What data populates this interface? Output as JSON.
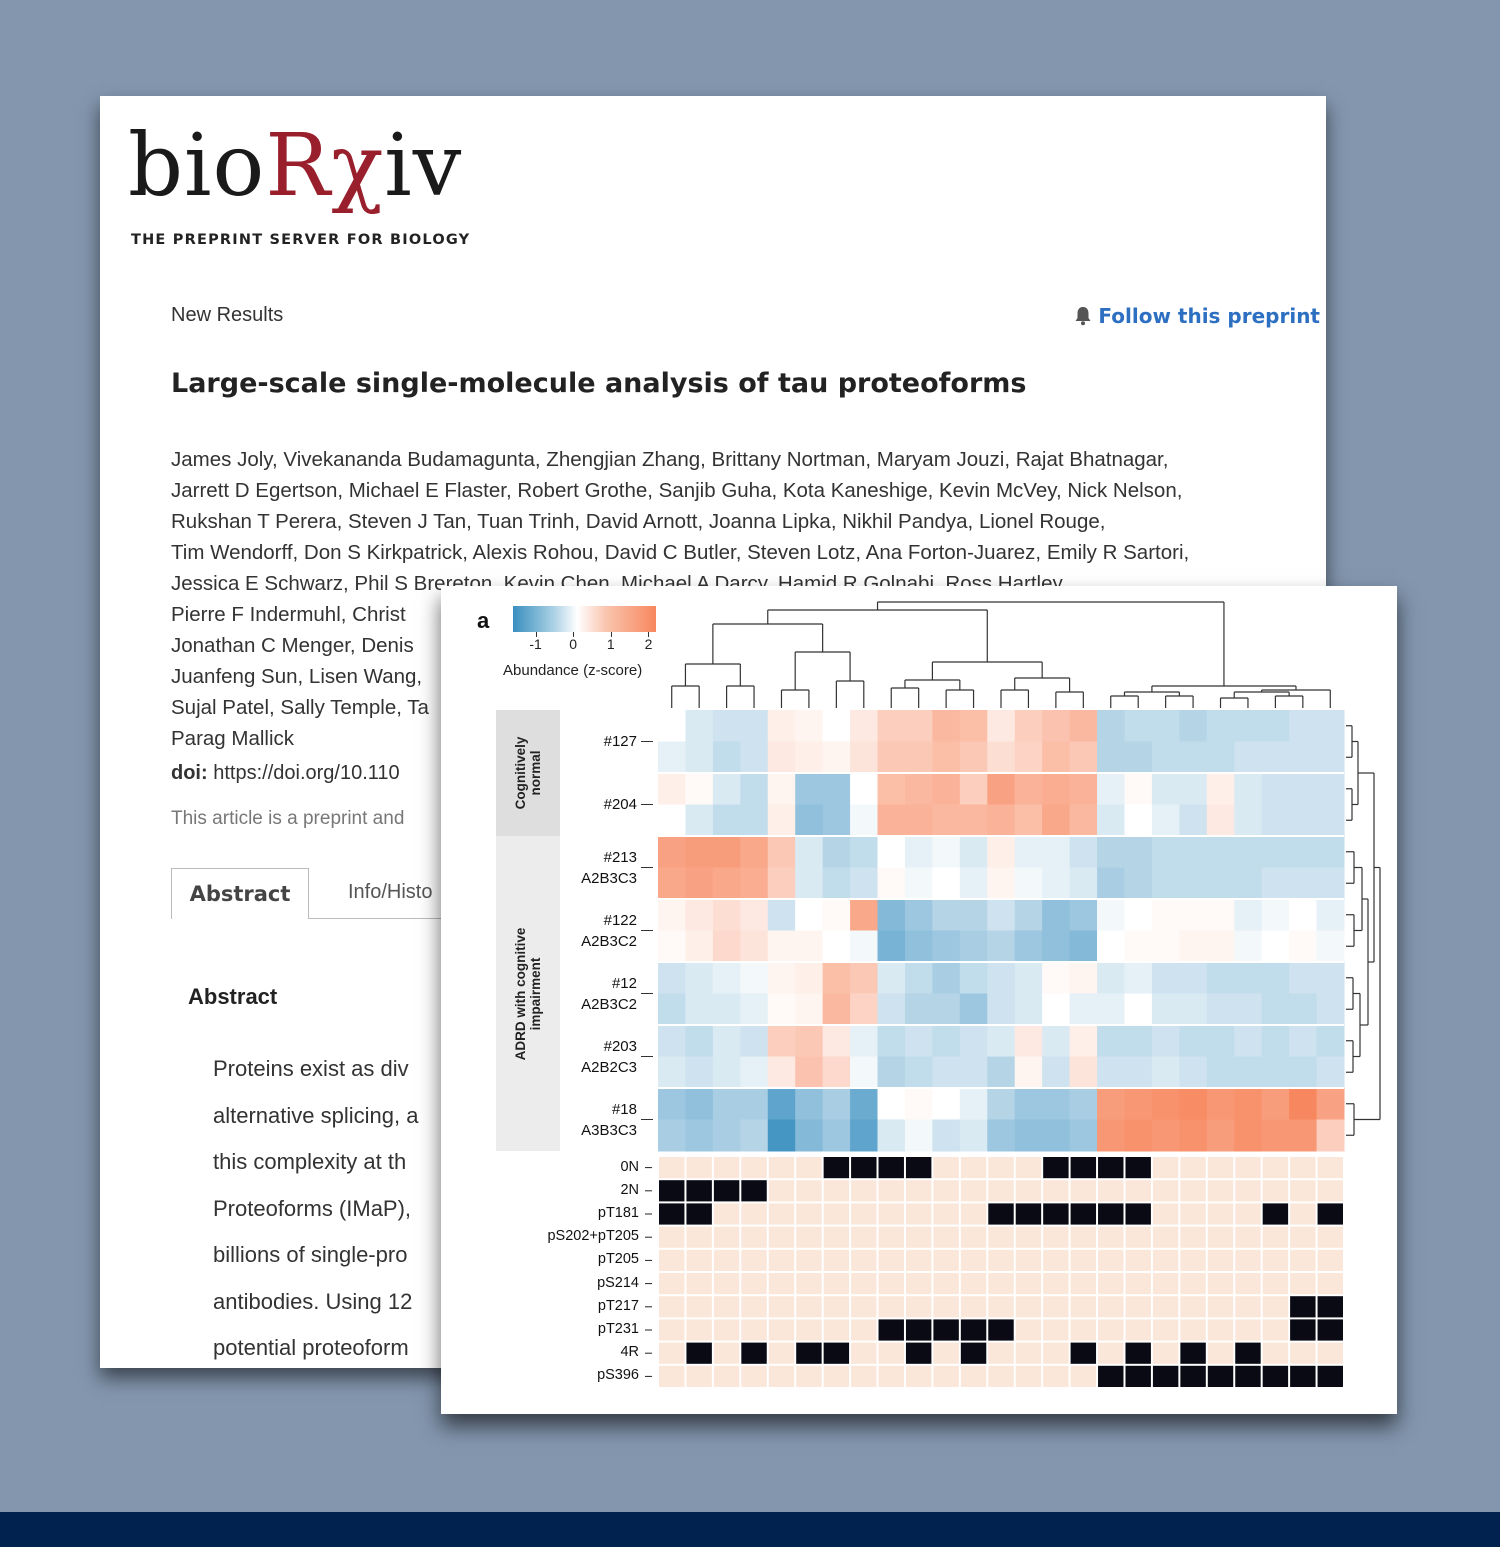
{
  "biorxiv": {
    "logo_pre": "bio",
    "logo_rx": "Rχ",
    "logo_post": "iv",
    "tagline": "THE PREPRINT SERVER FOR BIOLOGY",
    "section": "New Results",
    "follow_label": "Follow this preprint",
    "title": "Large-scale single-molecule analysis of tau proteoforms",
    "authors_lines": [
      "James Joly, Vivekananda Budamagunta, Zhengjian Zhang, Brittany Nortman, Maryam Jouzi, Rajat Bhatnagar,",
      "Jarrett D Egertson, Michael E Flaster, Robert Grothe, Sanjib Guha, Kota Kaneshige, Kevin McVey, Nick Nelson,",
      "Rukshan T Perera, Steven J Tan, Tuan Trinh, David Arnott, Joanna Lipka, Nikhil Pandya, Lionel Rouge,",
      "Tim Wendorff, Don S Kirkpatrick, Alexis Rohou, David C Butler, Steven Lotz, Ana Forton-Juarez, Emily R Sartori,",
      "Jessica E Schwarz, Phil S Brereton, Kevin Chen, Michael A Darcy, Hamid R Golnabi, Ross Hartley,",
      "Pierre F Indermuhl, Christ",
      "Jonathan C Menger, Denis",
      "Juanfeng Sun, Lisen Wang,",
      "Sujal Patel, Sally Temple, Ta",
      "Parag Mallick"
    ],
    "doi_label": "doi:",
    "doi_value": "https://doi.org/10.110",
    "note": "This article is a preprint and",
    "tab_abstract": "Abstract",
    "tab_info": "Info/Histo",
    "abstract_heading": "Abstract",
    "abstract_lines": [
      "Proteins exist as div",
      "alternative splicing, a",
      "this complexity at th",
      "Proteoforms (IMaP),",
      "billions of single-pro",
      "antibodies. Using 12",
      "potential proteoform"
    ]
  },
  "figure": {
    "panel_label": "a",
    "legend": {
      "title": "Abundance (z-score)",
      "ticks": [
        "-1",
        "0",
        "1",
        "2"
      ]
    },
    "groups": [
      {
        "label": "Cognitively normal",
        "lines": [
          "Cognitively",
          "normal"
        ]
      },
      {
        "label": "ADRD with cognitive impairment",
        "lines": [
          "ADRD with cognitive",
          "impairment"
        ]
      }
    ],
    "samples": [
      {
        "id": "#127",
        "genotype": ""
      },
      {
        "id": "#204",
        "genotype": ""
      },
      {
        "id": "#213",
        "genotype": "A2B3C3"
      },
      {
        "id": "#122",
        "genotype": "A2B3C2"
      },
      {
        "id": "#12",
        "genotype": "A2B3C2"
      },
      {
        "id": "#203",
        "genotype": "A2B2C3"
      },
      {
        "id": "#18",
        "genotype": "A3B3C3"
      }
    ],
    "features": [
      "0N",
      "2N",
      "pT181",
      "pS202+pT205",
      "pT205",
      "pS214",
      "pT217",
      "pT231",
      "4R",
      "pS396"
    ],
    "colors": {
      "neg": "#3a8fc0",
      "zero": "#ffffff",
      "pos": "#f7875e",
      "present": "#0a0a14",
      "absent": "#fbe6da"
    }
  },
  "chart_data": {
    "type": "heatmap",
    "title": "",
    "colorbar_label": "Abundance (z-score)",
    "colorbar_ticks": [
      -1,
      0,
      1,
      2
    ],
    "n_columns": 25,
    "row_groups": [
      "Cognitively normal",
      "ADRD with cognitive impairment"
    ],
    "rows": [
      "#127",
      "#127",
      "#204",
      "#204",
      "#213 A2B3C3",
      "#213 A2B3C3",
      "#122 A2B3C2",
      "#122 A2B3C2",
      "#12 A2B3C2",
      "#12 A2B3C2",
      "#203 A2B2C3",
      "#203 A2B2C3",
      "#18 A3B3C3",
      "#18 A3B3C3"
    ],
    "values": [
      [
        0.0,
        -0.3,
        -0.4,
        -0.4,
        0.3,
        0.2,
        0.0,
        0.4,
        0.9,
        0.9,
        1.3,
        1.2,
        0.4,
        0.9,
        1.1,
        1.3,
        -0.6,
        -0.5,
        -0.5,
        -0.6,
        -0.5,
        -0.5,
        -0.5,
        -0.4,
        -0.4
      ],
      [
        -0.2,
        -0.3,
        -0.5,
        -0.4,
        0.4,
        0.3,
        0.2,
        0.5,
        1.0,
        1.0,
        1.2,
        1.0,
        0.6,
        0.8,
        1.2,
        1.0,
        -0.6,
        -0.6,
        -0.5,
        -0.5,
        -0.5,
        -0.4,
        -0.4,
        -0.4,
        -0.4
      ],
      [
        0.3,
        0.1,
        -0.3,
        -0.5,
        0.2,
        -0.8,
        -0.8,
        0.0,
        1.2,
        1.3,
        1.4,
        0.9,
        1.7,
        1.4,
        1.5,
        1.4,
        -0.2,
        0.1,
        -0.3,
        -0.3,
        0.3,
        -0.3,
        -0.4,
        -0.4,
        -0.4
      ],
      [
        0.0,
        -0.3,
        -0.5,
        -0.5,
        0.3,
        -0.9,
        -0.8,
        -0.1,
        1.4,
        1.4,
        1.3,
        1.3,
        1.4,
        1.2,
        1.6,
        1.3,
        -0.3,
        0.0,
        -0.2,
        -0.4,
        0.4,
        -0.3,
        -0.4,
        -0.4,
        -0.4
      ],
      [
        1.7,
        1.8,
        1.8,
        1.6,
        1.0,
        -0.3,
        -0.6,
        -0.5,
        0.0,
        -0.2,
        -0.1,
        -0.3,
        0.3,
        -0.2,
        -0.2,
        -0.4,
        -0.6,
        -0.6,
        -0.5,
        -0.5,
        -0.5,
        -0.5,
        -0.5,
        -0.5,
        -0.5
      ],
      [
        1.6,
        1.7,
        1.6,
        1.5,
        0.9,
        -0.3,
        -0.5,
        -0.4,
        0.1,
        -0.1,
        0.0,
        -0.2,
        0.2,
        -0.1,
        -0.2,
        -0.3,
        -0.7,
        -0.6,
        -0.5,
        -0.5,
        -0.5,
        -0.5,
        -0.4,
        -0.4,
        -0.4
      ],
      [
        0.2,
        0.4,
        0.6,
        0.4,
        -0.4,
        0.0,
        0.1,
        1.6,
        -1.0,
        -0.8,
        -0.6,
        -0.6,
        -0.4,
        -0.6,
        -0.9,
        -0.8,
        -0.1,
        0.0,
        0.1,
        0.1,
        0.1,
        -0.2,
        -0.1,
        0.0,
        -0.2
      ],
      [
        0.1,
        0.3,
        0.7,
        0.5,
        0.2,
        0.2,
        0.0,
        -0.1,
        -1.1,
        -0.9,
        -0.8,
        -0.7,
        -0.6,
        -0.8,
        -0.9,
        -1.0,
        0.0,
        0.1,
        0.1,
        0.2,
        0.2,
        -0.1,
        0.0,
        0.1,
        -0.1
      ],
      [
        -0.4,
        -0.3,
        -0.2,
        -0.1,
        0.2,
        0.3,
        1.2,
        1.0,
        -0.3,
        -0.5,
        -0.7,
        -0.5,
        -0.4,
        -0.3,
        0.1,
        0.2,
        -0.3,
        -0.2,
        -0.4,
        -0.4,
        -0.5,
        -0.5,
        -0.5,
        -0.4,
        -0.4
      ],
      [
        -0.5,
        -0.3,
        -0.3,
        -0.2,
        0.1,
        0.2,
        1.3,
        0.8,
        -0.4,
        -0.6,
        -0.6,
        -0.8,
        -0.4,
        -0.3,
        0.0,
        -0.2,
        -0.2,
        0.0,
        -0.3,
        -0.3,
        -0.4,
        -0.4,
        -0.5,
        -0.5,
        -0.4
      ],
      [
        -0.4,
        -0.5,
        -0.3,
        -0.4,
        0.9,
        1.0,
        0.4,
        -0.2,
        -0.5,
        -0.4,
        -0.5,
        -0.4,
        -0.3,
        0.4,
        -0.3,
        0.3,
        -0.5,
        -0.5,
        -0.4,
        -0.5,
        -0.5,
        -0.4,
        -0.5,
        -0.4,
        -0.5
      ],
      [
        -0.3,
        -0.4,
        -0.3,
        -0.2,
        0.4,
        1.1,
        0.7,
        -0.1,
        -0.6,
        -0.5,
        -0.4,
        -0.4,
        -0.6,
        0.2,
        -0.4,
        0.5,
        -0.4,
        -0.4,
        -0.3,
        -0.4,
        -0.5,
        -0.5,
        -0.5,
        -0.5,
        -0.4
      ],
      [
        -0.8,
        -0.9,
        -0.7,
        -0.7,
        -1.3,
        -0.9,
        -0.7,
        -1.2,
        0.0,
        0.1,
        0.0,
        -0.2,
        -0.6,
        -0.8,
        -0.8,
        -0.7,
        1.8,
        1.9,
        2.0,
        2.1,
        1.9,
        2.0,
        1.8,
        2.2,
        1.7
      ],
      [
        -0.7,
        -0.8,
        -0.7,
        -0.6,
        -1.5,
        -1.0,
        -0.8,
        -1.3,
        -0.3,
        -0.1,
        -0.4,
        -0.3,
        -0.8,
        -0.9,
        -0.9,
        -0.8,
        1.9,
        2.0,
        1.9,
        2.0,
        1.8,
        2.0,
        1.9,
        1.9,
        0.9
      ]
    ],
    "feature_rows": [
      "0N",
      "2N",
      "pT181",
      "pS202+pT205",
      "pT205",
      "pS214",
      "pT217",
      "pT231",
      "4R",
      "pS396"
    ],
    "feature_matrix": [
      [
        0,
        0,
        0,
        0,
        0,
        0,
        1,
        1,
        1,
        1,
        0,
        0,
        0,
        0,
        1,
        1,
        1,
        1,
        0,
        0,
        0,
        0,
        0,
        0,
        0
      ],
      [
        1,
        1,
        1,
        1,
        0,
        0,
        0,
        0,
        0,
        0,
        0,
        0,
        0,
        0,
        0,
        0,
        0,
        0,
        0,
        0,
        0,
        0,
        0,
        0,
        0
      ],
      [
        1,
        1,
        0,
        0,
        0,
        0,
        0,
        0,
        0,
        0,
        0,
        0,
        1,
        1,
        1,
        1,
        1,
        1,
        0,
        0,
        0,
        0,
        1,
        0,
        1
      ],
      [
        0,
        0,
        0,
        0,
        0,
        0,
        0,
        0,
        0,
        0,
        0,
        0,
        0,
        0,
        0,
        0,
        0,
        0,
        0,
        0,
        0,
        0,
        0,
        0,
        0
      ],
      [
        0,
        0,
        0,
        0,
        0,
        0,
        0,
        0,
        0,
        0,
        0,
        0,
        0,
        0,
        0,
        0,
        0,
        0,
        0,
        0,
        0,
        0,
        0,
        0,
        0
      ],
      [
        0,
        0,
        0,
        0,
        0,
        0,
        0,
        0,
        0,
        0,
        0,
        0,
        0,
        0,
        0,
        0,
        0,
        0,
        0,
        0,
        0,
        0,
        0,
        0,
        0
      ],
      [
        0,
        0,
        0,
        0,
        0,
        0,
        0,
        0,
        0,
        0,
        0,
        0,
        0,
        0,
        0,
        0,
        0,
        0,
        0,
        0,
        0,
        0,
        0,
        1,
        1
      ],
      [
        0,
        0,
        0,
        0,
        0,
        0,
        0,
        0,
        1,
        1,
        1,
        1,
        1,
        0,
        0,
        0,
        0,
        0,
        0,
        0,
        0,
        0,
        0,
        1,
        1
      ],
      [
        0,
        1,
        0,
        1,
        0,
        1,
        1,
        0,
        0,
        1,
        0,
        1,
        0,
        0,
        0,
        1,
        0,
        1,
        0,
        1,
        0,
        1,
        0,
        0,
        0
      ],
      [
        0,
        0,
        0,
        0,
        0,
        0,
        0,
        0,
        0,
        0,
        0,
        0,
        0,
        0,
        0,
        0,
        1,
        1,
        1,
        1,
        1,
        1,
        1,
        1,
        1
      ]
    ]
  }
}
